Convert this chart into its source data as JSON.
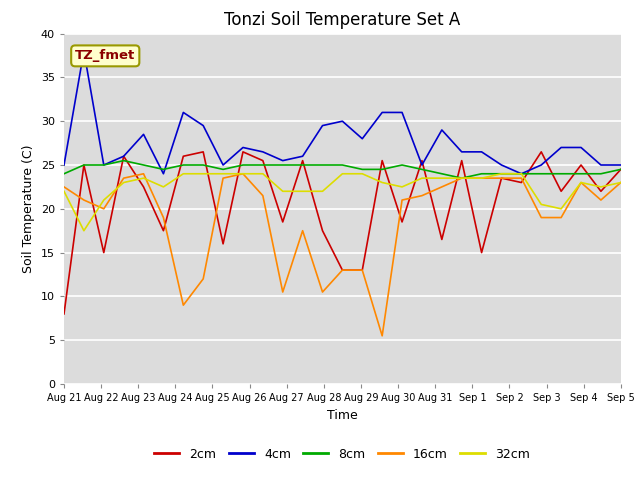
{
  "title": "Tonzi Soil Temperature Set A",
  "xlabel": "Time",
  "ylabel": "Soil Temperature (C)",
  "annotation": "TZ_fmet",
  "ylim": [
    0,
    40
  ],
  "background_color": "#dcdcdc",
  "tick_labels": [
    "Aug 21",
    "Aug 22",
    "Aug 23",
    "Aug 24",
    "Aug 25",
    "Aug 26",
    "Aug 27",
    "Aug 28",
    "Aug 29",
    "Aug 30",
    "Aug 31",
    "Sep 1",
    "Sep 2",
    "Sep 3",
    "Sep 4",
    "Sep 5"
  ],
  "series": {
    "2cm": {
      "color": "#cc0000",
      "values": [
        8.0,
        25.0,
        15.0,
        26.0,
        22.5,
        17.5,
        26.0,
        26.5,
        16.0,
        26.5,
        25.5,
        18.5,
        25.5,
        17.5,
        13.0,
        13.0,
        25.5,
        18.5,
        25.5,
        16.5,
        25.5,
        15.0,
        23.5,
        23.0,
        26.5,
        22.0,
        25.0,
        22.0,
        24.5
      ]
    },
    "4cm": {
      "color": "#0000cc",
      "values": [
        25.0,
        38.0,
        25.0,
        26.0,
        28.5,
        24.0,
        31.0,
        29.5,
        25.0,
        27.0,
        26.5,
        25.5,
        26.0,
        29.5,
        30.0,
        28.0,
        31.0,
        31.0,
        25.0,
        29.0,
        26.5,
        26.5,
        25.0,
        24.0,
        25.0,
        27.0,
        27.0,
        25.0,
        25.0
      ]
    },
    "8cm": {
      "color": "#00aa00",
      "values": [
        24.0,
        25.0,
        25.0,
        25.5,
        25.0,
        24.5,
        25.0,
        25.0,
        24.5,
        25.0,
        25.0,
        25.0,
        25.0,
        25.0,
        25.0,
        24.5,
        24.5,
        25.0,
        24.5,
        24.0,
        23.5,
        24.0,
        24.0,
        24.0,
        24.0,
        24.0,
        24.0,
        24.0,
        24.5
      ]
    },
    "16cm": {
      "color": "#ff8800",
      "values": [
        22.5,
        21.0,
        20.0,
        23.5,
        24.0,
        19.0,
        9.0,
        12.0,
        23.5,
        24.0,
        21.5,
        10.5,
        17.5,
        10.5,
        13.0,
        13.0,
        5.5,
        21.0,
        21.5,
        22.5,
        23.5,
        23.5,
        23.5,
        23.5,
        19.0,
        19.0,
        23.0,
        21.0,
        23.0
      ]
    },
    "32cm": {
      "color": "#dddd00",
      "values": [
        22.0,
        17.5,
        21.0,
        23.0,
        23.5,
        22.5,
        24.0,
        24.0,
        24.0,
        24.0,
        24.0,
        22.0,
        22.0,
        22.0,
        24.0,
        24.0,
        23.0,
        22.5,
        23.5,
        23.5,
        23.5,
        23.5,
        24.0,
        24.0,
        20.5,
        20.0,
        23.0,
        22.5,
        23.0
      ]
    }
  }
}
